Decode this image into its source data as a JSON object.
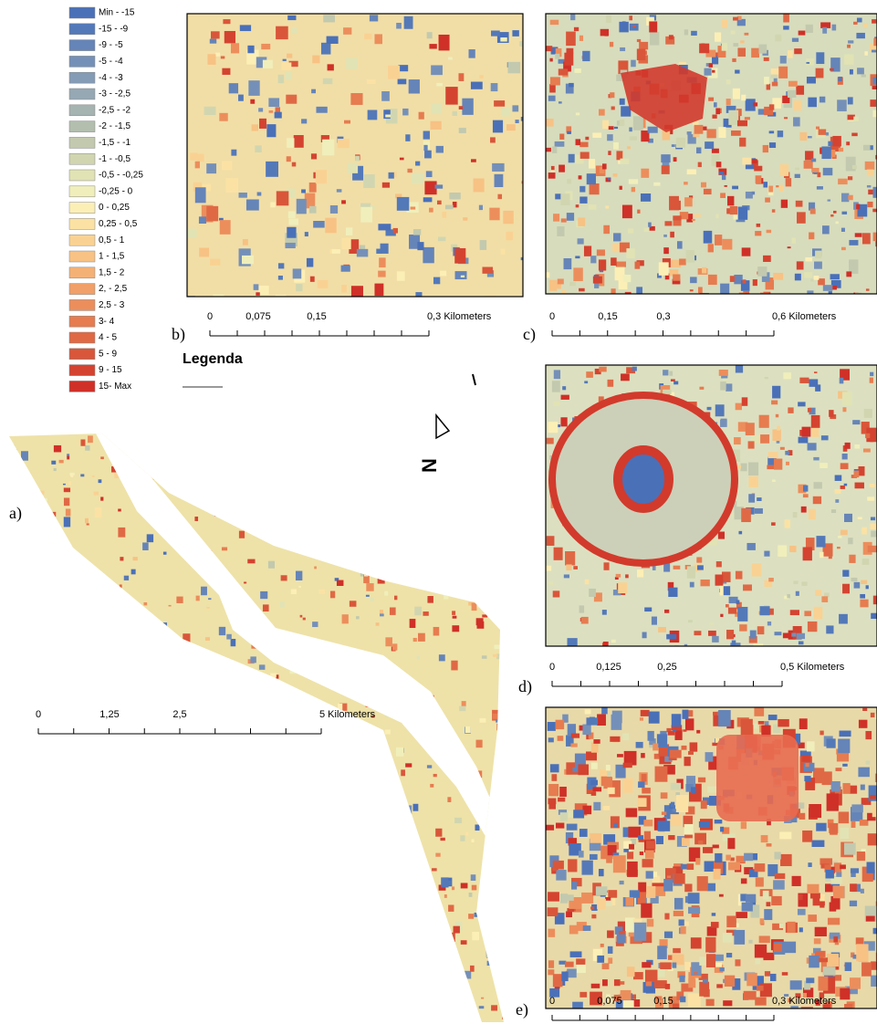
{
  "legend": {
    "title": "Legenda",
    "items": [
      {
        "label": "Min - -15",
        "color": "#4a70b8"
      },
      {
        "label": "-15 - -9",
        "color": "#5479b8"
      },
      {
        "label": "-9 - -5",
        "color": "#6584b8"
      },
      {
        "label": "-5 - -4",
        "color": "#7590b8"
      },
      {
        "label": "-4 - -3",
        "color": "#859cb6"
      },
      {
        "label": "-3 - -2,5",
        "color": "#95a8b4"
      },
      {
        "label": "-2,5 - -2",
        "color": "#a5b3b1"
      },
      {
        "label": "-2 - -1,5",
        "color": "#b3beae"
      },
      {
        "label": "-1,5 - -1",
        "color": "#c2c9ae"
      },
      {
        "label": "-1 - -0,5",
        "color": "#d1d6b0"
      },
      {
        "label": "-0,5 - -0,25",
        "color": "#e1e3b4"
      },
      {
        "label": "-0,25 - 0",
        "color": "#f0efbb"
      },
      {
        "label": "0 - 0,25",
        "color": "#fcefb6"
      },
      {
        "label": "0,25 - 0,5",
        "color": "#fbe2a4"
      },
      {
        "label": "0,5 - 1",
        "color": "#f9d293"
      },
      {
        "label": "1 - 1,5",
        "color": "#f7c284"
      },
      {
        "label": "1,5 - 2",
        "color": "#f4b176"
      },
      {
        "label": "2, - 2,5",
        "color": "#f0a068"
      },
      {
        "label": "2,5 - 3",
        "color": "#ec8e5c"
      },
      {
        "label": "3- 4",
        "color": "#e67c50"
      },
      {
        "label": "4 - 5",
        "color": "#e06945"
      },
      {
        "label": "5 - 9",
        "color": "#d9563a"
      },
      {
        "label": "9 - 15",
        "color": "#d44330"
      },
      {
        "label": "15- Max",
        "color": "#cf3028"
      }
    ]
  },
  "north_label": "N",
  "panels": [
    {
      "label": "a)",
      "scale_labels": [
        "0",
        "1,25",
        "2,5",
        "5 Kilometers"
      ]
    },
    {
      "label": "b)",
      "scale_labels": [
        "0",
        "0,075",
        "0,15",
        "0,3 Kilometers"
      ]
    },
    {
      "label": "c)",
      "scale_labels": [
        "0",
        "0,15",
        "0,3",
        "0,6 Kilometers"
      ]
    },
    {
      "label": "d)",
      "scale_labels": [
        "0",
        "0,125",
        "0,25",
        "0,5 Kilometers"
      ]
    },
    {
      "label": "e)",
      "scale_labels": [
        "0",
        "0,075",
        "0,15",
        "0,3 Kilometers"
      ]
    }
  ]
}
